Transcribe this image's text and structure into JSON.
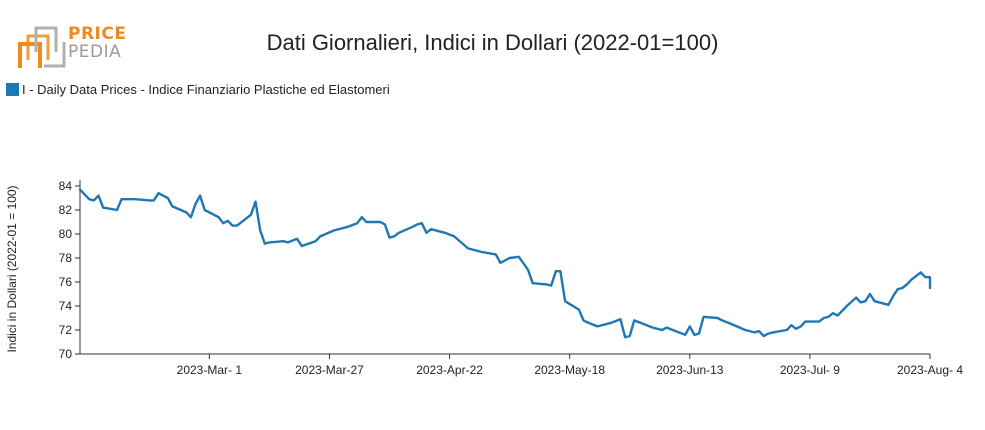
{
  "logo": {
    "line1": "PRICE",
    "line2": "PEDIA"
  },
  "colors": {
    "series": "#1f77b4",
    "logo_orange": "#f08a1c",
    "logo_gray": "#9a9a9a"
  },
  "chart_data": {
    "type": "line",
    "title": "Dati Giornalieri, Indici in Dollari (2022-01=100)",
    "ylabel": "Indici in Dollari (2022-01 = 100)",
    "xlabel": "",
    "ylim": [
      70,
      84.5
    ],
    "yticks": [
      70,
      72,
      74,
      76,
      78,
      80,
      82,
      84
    ],
    "xlim": [
      "2023-02-01",
      "2023-08-04"
    ],
    "xticks": [
      {
        "date": "2023-03-01",
        "label": "2023-Mar- 1"
      },
      {
        "date": "2023-03-27",
        "label": "2023-Mar-27"
      },
      {
        "date": "2023-04-22",
        "label": "2023-Apr-22"
      },
      {
        "date": "2023-05-18",
        "label": "2023-May-18"
      },
      {
        "date": "2023-06-13",
        "label": "2023-Jun-13"
      },
      {
        "date": "2023-07-09",
        "label": "2023-Jul- 9"
      },
      {
        "date": "2023-08-04",
        "label": "2023-Aug- 4"
      }
    ],
    "legend_position": "top-left",
    "grid": false,
    "series": [
      {
        "name": "I - Daily Data Prices - Indice Finanziario Plastiche ed Elastomeri",
        "points": [
          [
            "2023-02-01",
            83.7
          ],
          [
            "2023-02-03",
            82.9
          ],
          [
            "2023-02-04",
            82.8
          ],
          [
            "2023-02-05",
            83.2
          ],
          [
            "2023-02-06",
            82.2
          ],
          [
            "2023-02-09",
            82.0
          ],
          [
            "2023-02-10",
            82.9
          ],
          [
            "2023-02-13",
            82.9
          ],
          [
            "2023-02-16",
            82.8
          ],
          [
            "2023-02-17",
            82.8
          ],
          [
            "2023-02-18",
            83.4
          ],
          [
            "2023-02-20",
            83.0
          ],
          [
            "2023-02-21",
            82.3
          ],
          [
            "2023-02-24",
            81.8
          ],
          [
            "2023-02-25",
            81.4
          ],
          [
            "2023-02-26",
            82.5
          ],
          [
            "2023-02-27",
            83.2
          ],
          [
            "2023-02-28",
            82.0
          ],
          [
            "2023-03-03",
            81.4
          ],
          [
            "2023-03-04",
            80.9
          ],
          [
            "2023-03-05",
            81.1
          ],
          [
            "2023-03-06",
            80.7
          ],
          [
            "2023-03-07",
            80.7
          ],
          [
            "2023-03-10",
            81.6
          ],
          [
            "2023-03-11",
            82.7
          ],
          [
            "2023-03-12",
            80.3
          ],
          [
            "2023-03-13",
            79.2
          ],
          [
            "2023-03-14",
            79.3
          ],
          [
            "2023-03-17",
            79.4
          ],
          [
            "2023-03-18",
            79.3
          ],
          [
            "2023-03-20",
            79.6
          ],
          [
            "2023-03-21",
            79.0
          ],
          [
            "2023-03-24",
            79.4
          ],
          [
            "2023-03-25",
            79.8
          ],
          [
            "2023-03-28",
            80.3
          ],
          [
            "2023-03-31",
            80.6
          ],
          [
            "2023-04-02",
            80.9
          ],
          [
            "2023-04-03",
            81.4
          ],
          [
            "2023-04-04",
            81.0
          ],
          [
            "2023-04-07",
            81.0
          ],
          [
            "2023-04-08",
            80.8
          ],
          [
            "2023-04-09",
            79.7
          ],
          [
            "2023-04-10",
            79.8
          ],
          [
            "2023-04-11",
            80.1
          ],
          [
            "2023-04-14",
            80.6
          ],
          [
            "2023-04-15",
            80.8
          ],
          [
            "2023-04-16",
            80.9
          ],
          [
            "2023-04-17",
            80.1
          ],
          [
            "2023-04-18",
            80.4
          ],
          [
            "2023-04-21",
            80.1
          ],
          [
            "2023-04-23",
            79.8
          ],
          [
            "2023-04-26",
            78.8
          ],
          [
            "2023-04-29",
            78.5
          ],
          [
            "2023-05-02",
            78.3
          ],
          [
            "2023-05-03",
            77.6
          ],
          [
            "2023-05-05",
            78.0
          ],
          [
            "2023-05-07",
            78.1
          ],
          [
            "2023-05-09",
            77.0
          ],
          [
            "2023-05-10",
            75.9
          ],
          [
            "2023-05-13",
            75.8
          ],
          [
            "2023-05-14",
            75.7
          ],
          [
            "2023-05-15",
            76.9
          ],
          [
            "2023-05-16",
            76.9
          ],
          [
            "2023-05-17",
            74.4
          ],
          [
            "2023-05-20",
            73.7
          ],
          [
            "2023-05-21",
            72.8
          ],
          [
            "2023-05-22",
            72.6
          ],
          [
            "2023-05-24",
            72.3
          ],
          [
            "2023-05-27",
            72.6
          ],
          [
            "2023-05-29",
            72.9
          ],
          [
            "2023-05-30",
            71.4
          ],
          [
            "2023-05-31",
            71.5
          ],
          [
            "2023-06-01",
            72.8
          ],
          [
            "2023-06-03",
            72.5
          ],
          [
            "2023-06-05",
            72.2
          ],
          [
            "2023-06-07",
            72.0
          ],
          [
            "2023-06-08",
            72.2
          ],
          [
            "2023-06-10",
            71.9
          ],
          [
            "2023-06-12",
            71.6
          ],
          [
            "2023-06-13",
            72.3
          ],
          [
            "2023-06-14",
            71.6
          ],
          [
            "2023-06-15",
            71.7
          ],
          [
            "2023-06-16",
            73.1
          ],
          [
            "2023-06-19",
            73.0
          ],
          [
            "2023-06-20",
            72.8
          ],
          [
            "2023-06-22",
            72.5
          ],
          [
            "2023-06-25",
            72.0
          ],
          [
            "2023-06-27",
            71.8
          ],
          [
            "2023-06-28",
            71.9
          ],
          [
            "2023-06-29",
            71.5
          ],
          [
            "2023-06-30",
            71.7
          ],
          [
            "2023-07-01",
            71.8
          ],
          [
            "2023-07-04",
            72.0
          ],
          [
            "2023-07-05",
            72.4
          ],
          [
            "2023-07-06",
            72.1
          ],
          [
            "2023-07-07",
            72.3
          ],
          [
            "2023-07-08",
            72.7
          ],
          [
            "2023-07-11",
            72.7
          ],
          [
            "2023-07-12",
            73.0
          ],
          [
            "2023-07-13",
            73.1
          ],
          [
            "2023-07-14",
            73.4
          ],
          [
            "2023-07-15",
            73.2
          ],
          [
            "2023-07-17",
            74.0
          ],
          [
            "2023-07-19",
            74.7
          ],
          [
            "2023-07-20",
            74.3
          ],
          [
            "2023-07-21",
            74.4
          ],
          [
            "2023-07-22",
            75.0
          ],
          [
            "2023-07-23",
            74.4
          ],
          [
            "2023-07-26",
            74.1
          ],
          [
            "2023-07-27",
            74.8
          ],
          [
            "2023-07-28",
            75.4
          ],
          [
            "2023-07-29",
            75.5
          ],
          [
            "2023-07-30",
            75.8
          ],
          [
            "2023-07-31",
            76.2
          ],
          [
            "2023-08-02",
            76.8
          ],
          [
            "2023-08-03",
            76.4
          ],
          [
            "2023-08-04",
            76.4
          ],
          [
            "2023-08-05",
            75.5
          ],
          [
            "2023-08-06",
            75.5
          ]
        ]
      }
    ]
  }
}
